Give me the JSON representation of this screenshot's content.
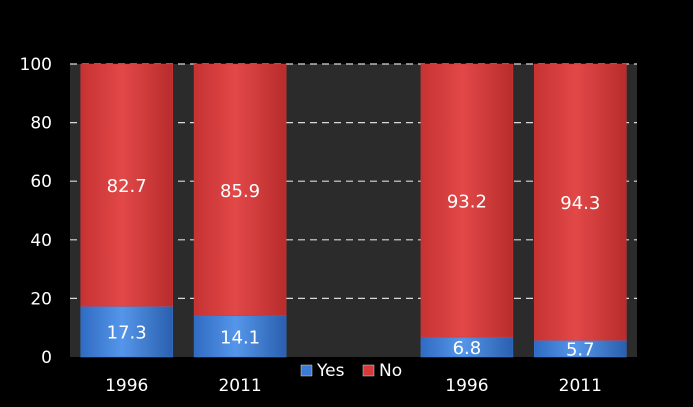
{
  "colors": {
    "background": "#000000",
    "plot_area": "#2b2b2b",
    "yes": "#3a7bd5",
    "no": "#d63a3a",
    "grid": "#d9d9d9",
    "text": "#ffffff"
  },
  "chart_data": {
    "type": "bar",
    "stacked": true,
    "categories": [
      "1996",
      "2011",
      "",
      "1996",
      "2011"
    ],
    "series": [
      {
        "name": "Yes",
        "values": [
          17.3,
          14.1,
          null,
          6.8,
          5.7
        ],
        "color": "#3a7bd5"
      },
      {
        "name": "No",
        "values": [
          82.7,
          85.9,
          null,
          93.2,
          94.3
        ],
        "color": "#d63a3a"
      }
    ],
    "title": "",
    "xlabel": "",
    "ylabel": "",
    "ylim": [
      0,
      100
    ],
    "yticks": [
      "0",
      "20",
      "40",
      "60",
      "80",
      "100"
    ],
    "grid": true,
    "legend": "bottom-center",
    "data_labels": true
  }
}
